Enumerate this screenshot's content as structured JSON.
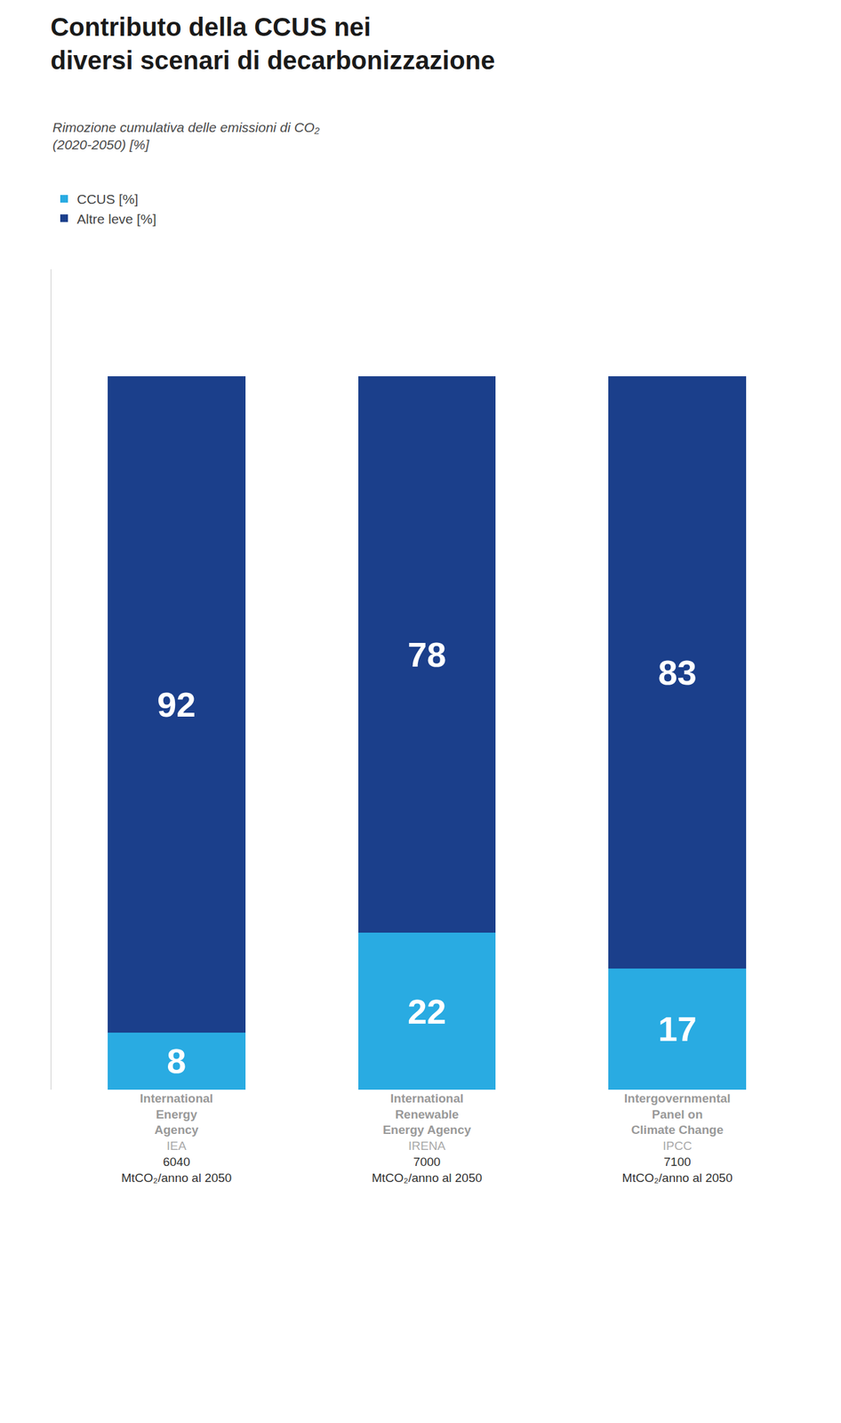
{
  "chart_data": {
    "type": "bar",
    "stacked": true,
    "title": "Contributo della CCUS nei\ndiversi scenari di decarbonizzazione",
    "subtitle": "Rimozione cumulativa delle emissioni di CO₂\n(2020-2050) [%]",
    "categories": [
      "IEA",
      "IRENA",
      "IPCC"
    ],
    "annotations": [
      {
        "category": "IEA",
        "text": "International\nEnergy\nAgency"
      },
      {
        "category": "IRENA",
        "text": "International\nRenewable\nEnergy Agency"
      },
      {
        "category": "IPCC",
        "text": "Intergovernmental\nPanel on\nClimate Change"
      }
    ],
    "category_values": {
      "label": "MtCO₂/anno al 2050",
      "values": [
        6040,
        7000,
        7100
      ]
    },
    "series": [
      {
        "name": "CCUS [%]",
        "color": "#29abe2",
        "values": [
          8,
          22,
          17
        ]
      },
      {
        "name": "Altre leve [%]",
        "color": "#1b3f8b",
        "values": [
          92,
          78,
          83
        ]
      }
    ],
    "ylim": [
      0,
      115
    ],
    "yticks": [],
    "tick_labels": "x",
    "grid": false,
    "data_labels": true,
    "legend": "top left"
  }
}
